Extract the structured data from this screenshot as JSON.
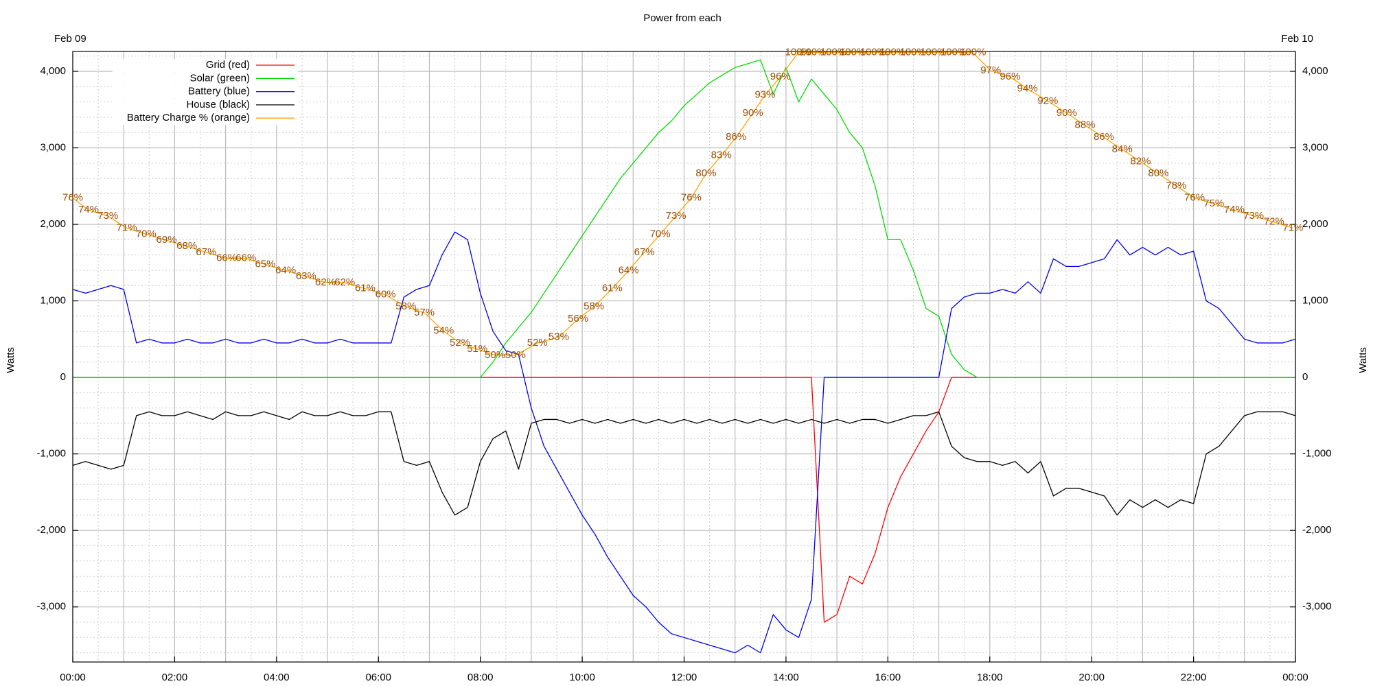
{
  "chart_data": {
    "type": "line",
    "title": "Power from each",
    "annotations": [
      "Feb 09",
      "Feb 10"
    ],
    "ylabel": "Watts",
    "y2label": "Watts",
    "grid": true,
    "legend": "upper left",
    "xlim": [
      0,
      24
    ],
    "xticks": [
      {
        "value": 0,
        "label": "00:00"
      },
      {
        "value": 2,
        "label": "02:00"
      },
      {
        "value": 4,
        "label": "04:00"
      },
      {
        "value": 6,
        "label": "06:00"
      },
      {
        "value": 8,
        "label": "08:00"
      },
      {
        "value": 10,
        "label": "10:00"
      },
      {
        "value": 12,
        "label": "12:00"
      },
      {
        "value": 14,
        "label": "14:00"
      },
      {
        "value": 16,
        "label": "16:00"
      },
      {
        "value": 18,
        "label": "18:00"
      },
      {
        "value": 20,
        "label": "20:00"
      },
      {
        "value": 22,
        "label": "22:00"
      },
      {
        "value": 24,
        "label": "00:00"
      }
    ],
    "ylim": [
      -3720,
      4260
    ],
    "yticks": [
      {
        "value": -3000,
        "label": "-3,000"
      },
      {
        "value": -2000,
        "label": "-2,000"
      },
      {
        "value": -1000,
        "label": "-1,000"
      },
      0,
      {
        "value": 1000,
        "label": "1,000"
      },
      {
        "value": 2000,
        "label": "2,000"
      },
      {
        "value": 3000,
        "label": "3,000"
      },
      {
        "value": 4000,
        "label": "4,000"
      }
    ],
    "y2lim": [
      -0.7,
      100.2
    ],
    "x": [
      0,
      0.25,
      0.5,
      0.75,
      1,
      1.25,
      1.5,
      1.75,
      2,
      2.25,
      2.5,
      2.75,
      3,
      3.25,
      3.5,
      3.75,
      4,
      4.25,
      4.5,
      4.75,
      5,
      5.25,
      5.5,
      5.75,
      6,
      6.25,
      6.5,
      6.75,
      7,
      7.25,
      7.5,
      7.75,
      8,
      8.25,
      8.5,
      8.75,
      9,
      9.25,
      9.5,
      9.75,
      10,
      10.25,
      10.5,
      10.75,
      11,
      11.25,
      11.5,
      11.75,
      12,
      12.25,
      12.5,
      12.75,
      13,
      13.25,
      13.5,
      13.75,
      14,
      14.25,
      14.5,
      14.75,
      15,
      15.25,
      15.5,
      15.75,
      16,
      16.25,
      16.5,
      16.75,
      17,
      17.25,
      17.5,
      17.75,
      18,
      18.25,
      18.5,
      18.75,
      19,
      19.25,
      19.5,
      19.75,
      20,
      20.25,
      20.5,
      20.75,
      21,
      21.25,
      21.5,
      21.75,
      22,
      22.25,
      22.5,
      22.75,
      23,
      23.25,
      23.5,
      23.75,
      24
    ],
    "series": [
      {
        "name": "Grid (red)",
        "color": "#ff0000",
        "values": [
          0,
          0,
          0,
          0,
          0,
          0,
          0,
          0,
          0,
          0,
          0,
          0,
          0,
          0,
          0,
          0,
          0,
          0,
          0,
          0,
          0,
          0,
          0,
          0,
          0,
          0,
          0,
          0,
          0,
          0,
          0,
          0,
          0,
          0,
          0,
          0,
          0,
          0,
          0,
          0,
          0,
          0,
          0,
          0,
          0,
          0,
          0,
          0,
          0,
          0,
          0,
          0,
          0,
          0,
          0,
          0,
          0,
          0,
          0,
          -3200,
          -3100,
          -2600,
          -2700,
          -2300,
          -1700,
          -1300,
          -1000,
          -700,
          -450,
          0,
          0,
          0,
          0,
          0,
          0,
          0,
          0,
          0,
          0,
          0,
          0,
          0,
          0,
          0,
          0,
          0,
          0,
          0,
          0,
          0,
          0,
          0,
          0,
          0,
          0,
          0,
          0
        ]
      },
      {
        "name": "Solar (green)",
        "color": "#00dd00",
        "values": [
          0,
          0,
          0,
          0,
          0,
          0,
          0,
          0,
          0,
          0,
          0,
          0,
          0,
          0,
          0,
          0,
          0,
          0,
          0,
          0,
          0,
          0,
          0,
          0,
          0,
          0,
          0,
          0,
          0,
          0,
          0,
          0,
          0,
          200,
          450,
          650,
          850,
          1100,
          1350,
          1600,
          1850,
          2100,
          2350,
          2600,
          2800,
          3000,
          3200,
          3350,
          3550,
          3700,
          3850,
          3950,
          4050,
          4100,
          4150,
          3700,
          4050,
          3600,
          3900,
          3700,
          3500,
          3200,
          3000,
          2500,
          1800,
          1800,
          1400,
          900,
          800,
          300,
          100,
          0,
          0,
          0,
          0,
          0,
          0,
          0,
          0,
          0,
          0,
          0,
          0,
          0,
          0,
          0,
          0,
          0,
          0,
          0,
          0,
          0,
          0,
          0,
          0,
          0,
          0
        ]
      },
      {
        "name": "Battery (blue)",
        "color": "#0000ee",
        "values": [
          1150,
          1100,
          1150,
          1200,
          1150,
          450,
          500,
          450,
          450,
          500,
          450,
          450,
          500,
          450,
          450,
          500,
          450,
          450,
          500,
          450,
          450,
          500,
          450,
          450,
          450,
          450,
          1050,
          1150,
          1200,
          1600,
          1900,
          1800,
          1100,
          600,
          350,
          300,
          -400,
          -900,
          -1200,
          -1500,
          -1800,
          -2050,
          -2350,
          -2600,
          -2850,
          -3000,
          -3200,
          -3350,
          -3400,
          -3450,
          -3500,
          -3550,
          -3600,
          -3500,
          -3600,
          -3100,
          -3300,
          -3400,
          -2900,
          0,
          0,
          0,
          0,
          0,
          0,
          0,
          0,
          0,
          0,
          900,
          1050,
          1100,
          1100,
          1150,
          1100,
          1250,
          1100,
          1550,
          1450,
          1450,
          1500,
          1550,
          1800,
          1600,
          1700,
          1600,
          1700,
          1600,
          1650,
          1000,
          900,
          700,
          500,
          450,
          450,
          450,
          500
        ]
      },
      {
        "name": "House (black)",
        "color": "#000000",
        "values": [
          -1150,
          -1100,
          -1150,
          -1200,
          -1150,
          -500,
          -450,
          -500,
          -500,
          -450,
          -500,
          -550,
          -450,
          -500,
          -500,
          -450,
          -500,
          -550,
          -450,
          -500,
          -500,
          -450,
          -500,
          -500,
          -450,
          -450,
          -1100,
          -1150,
          -1100,
          -1500,
          -1800,
          -1700,
          -1100,
          -800,
          -700,
          -1200,
          -600,
          -550,
          -550,
          -600,
          -550,
          -600,
          -550,
          -600,
          -550,
          -600,
          -550,
          -600,
          -550,
          -600,
          -550,
          -600,
          -550,
          -600,
          -550,
          -600,
          -550,
          -600,
          -550,
          -600,
          -550,
          -600,
          -550,
          -550,
          -600,
          -550,
          -500,
          -500,
          -450,
          -900,
          -1050,
          -1100,
          -1100,
          -1150,
          -1100,
          -1250,
          -1100,
          -1550,
          -1450,
          -1450,
          -1500,
          -1550,
          -1800,
          -1600,
          -1700,
          -1600,
          -1700,
          -1600,
          -1650,
          -1000,
          -900,
          -700,
          -500,
          -450,
          -450,
          -450,
          -500
        ]
      },
      {
        "name": "Battery Charge % (orange)",
        "color": "#ffa500",
        "label_color": "#9a4a00",
        "axis": "y2",
        "x": [
          0,
          0.31,
          0.69,
          1.06,
          1.44,
          1.84,
          2.24,
          2.62,
          3.02,
          3.4,
          3.78,
          4.18,
          4.58,
          4.96,
          5.34,
          5.74,
          6.14,
          6.54,
          6.9,
          7.28,
          7.6,
          7.94,
          8.29,
          8.69,
          9.12,
          9.54,
          9.92,
          10.23,
          10.59,
          10.91,
          11.22,
          11.53,
          11.84,
          12.14,
          12.43,
          12.73,
          13.02,
          13.35,
          13.59,
          13.89,
          14.24,
          14.53,
          14.93,
          15.31,
          15.71,
          16.09,
          16.49,
          16.89,
          17.29,
          17.67,
          18.02,
          18.4,
          18.74,
          19.14,
          19.51,
          19.87,
          20.24,
          20.6,
          20.96,
          21.31,
          21.66,
          22.02,
          22.4,
          22.8,
          23.18,
          23.58,
          23.95
        ],
        "values": [
          76,
          74,
          73,
          71,
          70,
          69,
          68,
          67,
          66,
          66,
          65,
          64,
          63,
          62,
          62,
          61,
          60,
          58,
          57,
          54,
          52,
          51,
          50,
          50,
          52,
          53,
          56,
          58,
          61,
          64,
          67,
          70,
          73,
          76,
          80,
          83,
          86,
          90,
          93,
          96,
          100,
          100,
          100,
          100,
          100,
          100,
          100,
          100,
          100,
          100,
          97,
          96,
          94,
          92,
          90,
          88,
          86,
          84,
          82,
          80,
          78,
          76,
          75,
          74,
          73,
          72,
          71
        ],
        "value_labels": [
          "76%",
          "74%",
          "73%",
          "71%",
          "70%",
          "69%",
          "68%",
          "67%",
          "66%",
          "66%",
          "65%",
          "64%",
          "63%",
          "62%",
          "62%",
          "61%",
          "60%",
          "58%",
          "57%",
          "54%",
          "52%",
          "51%",
          "50%",
          "50%",
          "52%",
          "53%",
          "56%",
          "58%",
          "61%",
          "64%",
          "67%",
          "70%",
          "73%",
          "76%",
          "80%",
          "83%",
          "86%",
          "90%",
          "93%",
          "96%",
          "100%",
          "100%",
          "100%",
          "100%",
          "100%",
          "100%",
          "100%",
          "100%",
          "100%",
          "100%",
          "97%",
          "96%",
          "94%",
          "92%",
          "90%",
          "88%",
          "86%",
          "84%",
          "82%",
          "80%",
          "78%",
          "76%",
          "75%",
          "74%",
          "73%",
          "72%",
          "71%"
        ]
      }
    ]
  }
}
